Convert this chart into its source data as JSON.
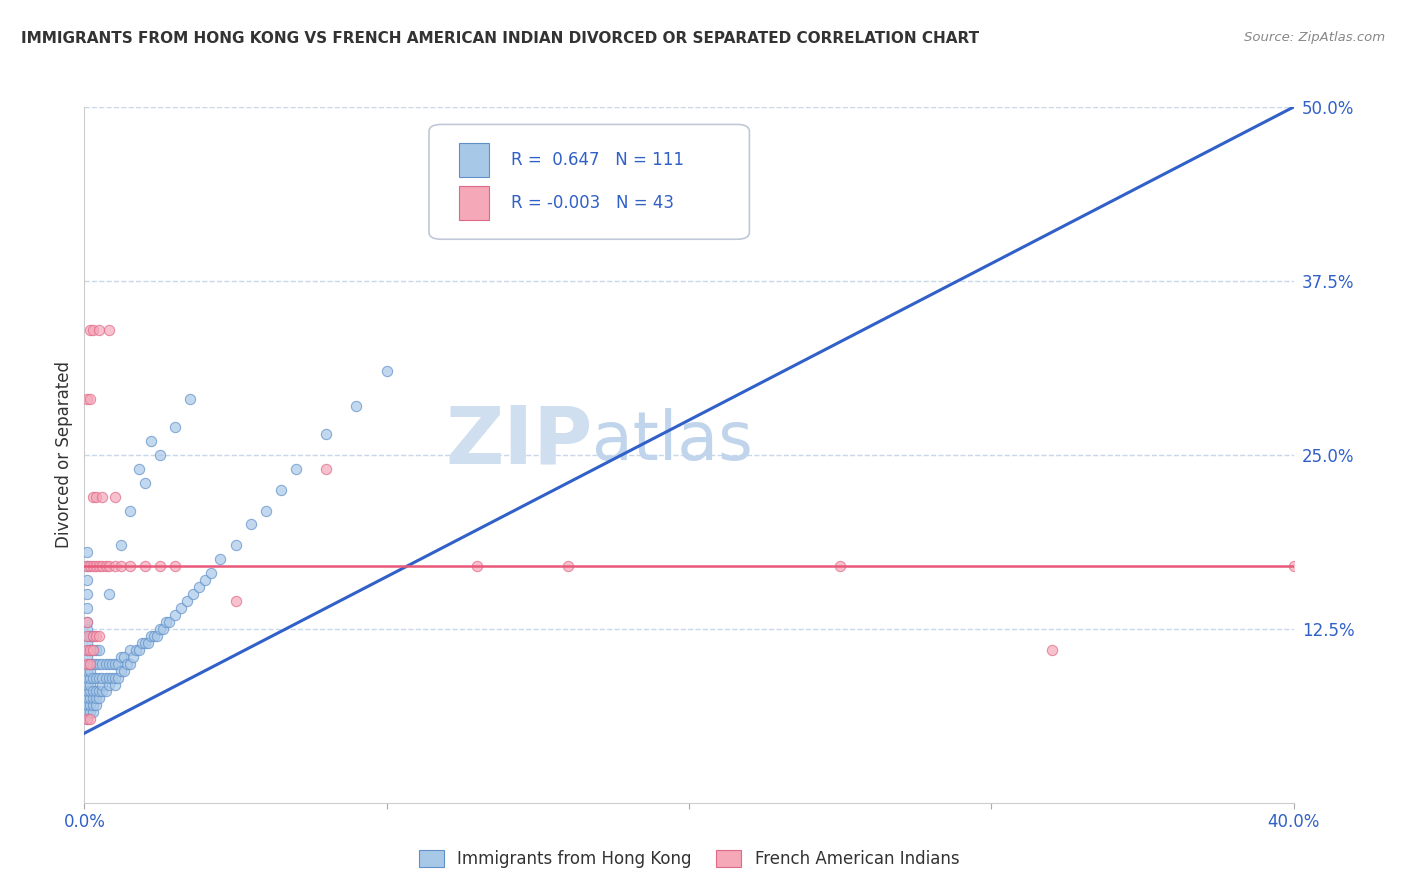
{
  "title": "IMMIGRANTS FROM HONG KONG VS FRENCH AMERICAN INDIAN DIVORCED OR SEPARATED CORRELATION CHART",
  "source": "Source: ZipAtlas.com",
  "ylabel": "Divorced or Separated",
  "xlim": [
    0.0,
    0.4
  ],
  "ylim": [
    0.0,
    0.5
  ],
  "ytick_labels": [
    "12.5%",
    "25.0%",
    "37.5%",
    "50.0%"
  ],
  "ytick_values": [
    0.125,
    0.25,
    0.375,
    0.5
  ],
  "xtick_values": [
    0.0,
    0.1,
    0.2,
    0.3,
    0.4
  ],
  "xtick_labels": [
    "0.0%",
    "",
    "",
    "",
    "40.0%"
  ],
  "blue_R": 0.647,
  "blue_N": 111,
  "pink_R": -0.003,
  "pink_N": 43,
  "blue_color": "#a8c8e8",
  "pink_color": "#f4a8b8",
  "blue_edge_color": "#6090c8",
  "pink_edge_color": "#e06888",
  "blue_line_color": "#3060c8",
  "pink_line_color": "#e85878",
  "watermark_zip_color": "#d0dff0",
  "watermark_atlas_color": "#c0d4ec",
  "legend_text_color": "#3060c8",
  "title_color": "#333333",
  "grid_color": "#c8d8ea",
  "background_color": "#ffffff",
  "blue_line_x0": 0.0,
  "blue_line_y0": 0.05,
  "blue_line_x1": 0.4,
  "blue_line_y1": 0.5,
  "pink_line_y": 0.17,
  "blue_scatter_x": [
    0.001,
    0.001,
    0.001,
    0.001,
    0.001,
    0.001,
    0.001,
    0.001,
    0.001,
    0.001,
    0.001,
    0.001,
    0.001,
    0.001,
    0.001,
    0.001,
    0.001,
    0.001,
    0.001,
    0.001,
    0.002,
    0.002,
    0.002,
    0.002,
    0.002,
    0.002,
    0.002,
    0.002,
    0.002,
    0.002,
    0.003,
    0.003,
    0.003,
    0.003,
    0.003,
    0.003,
    0.003,
    0.003,
    0.004,
    0.004,
    0.004,
    0.004,
    0.004,
    0.004,
    0.005,
    0.005,
    0.005,
    0.005,
    0.005,
    0.006,
    0.006,
    0.006,
    0.006,
    0.007,
    0.007,
    0.007,
    0.008,
    0.008,
    0.008,
    0.009,
    0.009,
    0.01,
    0.01,
    0.01,
    0.011,
    0.011,
    0.012,
    0.012,
    0.013,
    0.013,
    0.014,
    0.015,
    0.015,
    0.016,
    0.017,
    0.018,
    0.019,
    0.02,
    0.021,
    0.022,
    0.023,
    0.024,
    0.025,
    0.026,
    0.027,
    0.028,
    0.03,
    0.032,
    0.034,
    0.036,
    0.038,
    0.04,
    0.042,
    0.045,
    0.05,
    0.055,
    0.06,
    0.065,
    0.07,
    0.08,
    0.09,
    0.1,
    0.015,
    0.02,
    0.025,
    0.03,
    0.035,
    0.018,
    0.022,
    0.012,
    0.008
  ],
  "blue_scatter_y": [
    0.06,
    0.065,
    0.07,
    0.075,
    0.08,
    0.085,
    0.09,
    0.095,
    0.1,
    0.105,
    0.11,
    0.115,
    0.12,
    0.125,
    0.13,
    0.14,
    0.15,
    0.16,
    0.17,
    0.18,
    0.065,
    0.07,
    0.075,
    0.08,
    0.085,
    0.09,
    0.095,
    0.1,
    0.11,
    0.12,
    0.065,
    0.07,
    0.075,
    0.08,
    0.09,
    0.1,
    0.11,
    0.12,
    0.07,
    0.075,
    0.08,
    0.09,
    0.1,
    0.11,
    0.075,
    0.08,
    0.09,
    0.1,
    0.11,
    0.08,
    0.085,
    0.09,
    0.1,
    0.08,
    0.09,
    0.1,
    0.085,
    0.09,
    0.1,
    0.09,
    0.1,
    0.085,
    0.09,
    0.1,
    0.09,
    0.1,
    0.095,
    0.105,
    0.095,
    0.105,
    0.1,
    0.1,
    0.11,
    0.105,
    0.11,
    0.11,
    0.115,
    0.115,
    0.115,
    0.12,
    0.12,
    0.12,
    0.125,
    0.125,
    0.13,
    0.13,
    0.135,
    0.14,
    0.145,
    0.15,
    0.155,
    0.16,
    0.165,
    0.175,
    0.185,
    0.2,
    0.21,
    0.225,
    0.24,
    0.265,
    0.285,
    0.31,
    0.21,
    0.23,
    0.25,
    0.27,
    0.29,
    0.24,
    0.26,
    0.185,
    0.15
  ],
  "pink_scatter_x": [
    0.001,
    0.001,
    0.001,
    0.001,
    0.001,
    0.002,
    0.002,
    0.002,
    0.003,
    0.003,
    0.003,
    0.004,
    0.004,
    0.005,
    0.005,
    0.006,
    0.007,
    0.008,
    0.01,
    0.012,
    0.015,
    0.02,
    0.025,
    0.03,
    0.05,
    0.08,
    0.13,
    0.16,
    0.25,
    0.32,
    0.001,
    0.002,
    0.003,
    0.004,
    0.006,
    0.01,
    0.002,
    0.003,
    0.005,
    0.008,
    0.4,
    0.001,
    0.002
  ],
  "pink_scatter_y": [
    0.1,
    0.11,
    0.12,
    0.13,
    0.17,
    0.1,
    0.11,
    0.17,
    0.11,
    0.12,
    0.17,
    0.12,
    0.17,
    0.12,
    0.17,
    0.17,
    0.17,
    0.17,
    0.17,
    0.17,
    0.17,
    0.17,
    0.17,
    0.17,
    0.145,
    0.24,
    0.17,
    0.17,
    0.17,
    0.11,
    0.29,
    0.29,
    0.22,
    0.22,
    0.22,
    0.22,
    0.34,
    0.34,
    0.34,
    0.34,
    0.17,
    0.06,
    0.06
  ]
}
